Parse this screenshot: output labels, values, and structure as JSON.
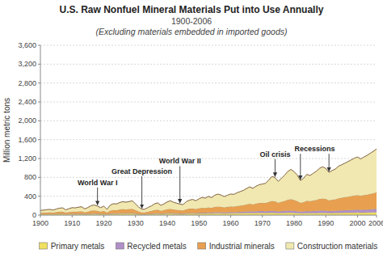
{
  "chart_data": {
    "type": "area",
    "stacked": true,
    "title": "U.S. Raw Nonfuel Mineral Materials Put into Use Annually",
    "subtitle": [
      "1900-2006",
      "(Excluding materials embedded in imported goods)"
    ],
    "y_label": "Million metric tons",
    "x": [
      1900,
      1901,
      1902,
      1903,
      1904,
      1905,
      1906,
      1907,
      1908,
      1909,
      1910,
      1911,
      1912,
      1913,
      1914,
      1915,
      1916,
      1917,
      1918,
      1919,
      1920,
      1921,
      1922,
      1923,
      1924,
      1925,
      1926,
      1927,
      1928,
      1929,
      1930,
      1931,
      1932,
      1933,
      1934,
      1935,
      1936,
      1937,
      1938,
      1939,
      1940,
      1941,
      1942,
      1943,
      1944,
      1945,
      1946,
      1947,
      1948,
      1949,
      1950,
      1951,
      1952,
      1953,
      1954,
      1955,
      1956,
      1957,
      1958,
      1959,
      1960,
      1961,
      1962,
      1963,
      1964,
      1965,
      1966,
      1967,
      1968,
      1969,
      1970,
      1971,
      1972,
      1973,
      1974,
      1975,
      1976,
      1977,
      1978,
      1979,
      1980,
      1981,
      1982,
      1983,
      1984,
      1985,
      1986,
      1987,
      1988,
      1989,
      1990,
      1991,
      1992,
      1993,
      1994,
      1995,
      1996,
      1997,
      1998,
      1999,
      2000,
      2001,
      2002,
      2003,
      2004,
      2005,
      2006
    ],
    "series": [
      {
        "name": "Primary metals",
        "color": "#f0e060",
        "values": [
          18,
          19,
          20,
          21,
          19,
          22,
          24,
          25,
          18,
          22,
          24,
          23,
          25,
          26,
          19,
          22,
          28,
          30,
          26,
          20,
          25,
          16,
          26,
          30,
          28,
          32,
          34,
          32,
          33,
          35,
          28,
          20,
          14,
          15,
          19,
          23,
          28,
          30,
          24,
          28,
          32,
          35,
          30,
          28,
          25,
          24,
          30,
          33,
          34,
          30,
          34,
          36,
          35,
          38,
          35,
          39,
          40,
          39,
          36,
          38,
          40,
          39,
          41,
          43,
          44,
          46,
          48,
          45,
          48,
          49,
          48,
          46,
          48,
          50,
          48,
          43,
          46,
          48,
          50,
          51,
          48,
          44,
          39,
          40,
          44,
          43,
          44,
          45,
          48,
          49,
          48,
          44,
          45,
          46,
          48,
          49,
          50,
          51,
          52,
          53,
          54,
          52,
          53,
          54,
          56,
          58,
          60
        ]
      },
      {
        "name": "Recycled metals",
        "color": "#b090c8",
        "values": [
          3,
          3,
          3,
          4,
          3,
          4,
          5,
          5,
          4,
          5,
          6,
          6,
          6,
          7,
          5,
          6,
          8,
          9,
          8,
          6,
          7,
          5,
          8,
          9,
          9,
          10,
          11,
          10,
          11,
          12,
          9,
          7,
          5,
          5,
          7,
          8,
          10,
          11,
          8,
          10,
          12,
          14,
          12,
          11,
          10,
          10,
          13,
          15,
          15,
          13,
          16,
          17,
          16,
          19,
          17,
          21,
          22,
          21,
          19,
          21,
          23,
          22,
          25,
          26,
          28,
          31,
          33,
          31,
          34,
          36,
          36,
          35,
          38,
          41,
          39,
          35,
          39,
          41,
          44,
          45,
          43,
          39,
          34,
          36,
          41,
          39,
          41,
          44,
          47,
          48,
          46,
          41,
          43,
          45,
          49,
          51,
          53,
          55,
          57,
          59,
          61,
          59,
          61,
          63,
          66,
          69,
          71
        ]
      },
      {
        "name": "Industrial minerals",
        "color": "#e8a050",
        "values": [
          28,
          30,
          33,
          34,
          30,
          37,
          42,
          44,
          33,
          39,
          44,
          43,
          47,
          50,
          38,
          46,
          57,
          61,
          56,
          47,
          56,
          36,
          60,
          70,
          68,
          77,
          82,
          79,
          83,
          88,
          70,
          51,
          36,
          38,
          48,
          57,
          69,
          75,
          60,
          69,
          80,
          86,
          78,
          73,
          67,
          65,
          80,
          88,
          92,
          85,
          95,
          103,
          100,
          108,
          102,
          115,
          120,
          115,
          107,
          115,
          120,
          119,
          128,
          133,
          140,
          150,
          158,
          152,
          163,
          172,
          175,
          177,
          191,
          209,
          203,
          185,
          199,
          213,
          230,
          241,
          230,
          213,
          188,
          199,
          219,
          213,
          223,
          233,
          247,
          256,
          247,
          228,
          238,
          245,
          259,
          267,
          277,
          285,
          294,
          302,
          309,
          300,
          309,
          317,
          328,
          338,
          352
        ]
      },
      {
        "name": "Construction materials",
        "color": "#f0e8b0",
        "values": [
          50,
          54,
          60,
          62,
          54,
          66,
          76,
          80,
          57,
          70,
          84,
          81,
          90,
          94,
          70,
          88,
          108,
          114,
          102,
          84,
          102,
          66,
          115,
          134,
          130,
          148,
          158,
          153,
          160,
          168,
          130,
          94,
          66,
          70,
          90,
          107,
          132,
          143,
          115,
          132,
          155,
          170,
          152,
          140,
          130,
          124,
          162,
          180,
          192,
          176,
          200,
          220,
          208,
          232,
          216,
          248,
          264,
          248,
          232,
          248,
          264,
          260,
          280,
          296,
          312,
          336,
          360,
          340,
          368,
          388,
          400,
          416,
          464,
          520,
          504,
          452,
          496,
          544,
          600,
          632,
          600,
          552,
          472,
          504,
          560,
          544,
          576,
          608,
          648,
          672,
          648,
          592,
          620,
          640,
          680,
          700,
          720,
          744,
          768,
          792,
          808,
          780,
          808,
          832,
          860,
          888,
          920
        ]
      }
    ],
    "xlim": [
      1900,
      2006
    ],
    "xticks": [
      1900,
      1910,
      1920,
      1930,
      1940,
      1950,
      1960,
      1970,
      1980,
      1990,
      2000,
      2006
    ],
    "ylim": [
      0,
      3600
    ],
    "yticks": [
      0,
      400,
      800,
      {
        "value": 1200,
        "label": "1,200"
      },
      {
        "value": 1600,
        "label": "1,600"
      },
      {
        "value": 2000,
        "label": "2,000"
      },
      {
        "value": 2400,
        "label": "2,400"
      },
      {
        "value": 2800,
        "label": "2,800"
      },
      {
        "value": 3200,
        "label": "3,200"
      },
      {
        "value": 3600,
        "label": "3,600"
      }
    ],
    "grid": true,
    "legend": "bottom",
    "annotations": [
      {
        "text": "World War I",
        "x": [
          1918
        ]
      },
      {
        "text": "Great Depression",
        "x": [
          1932
        ]
      },
      {
        "text": "World War II",
        "x": [
          1944
        ]
      },
      {
        "text": "Oil crisis",
        "x": [
          1974
        ]
      },
      {
        "text": "Recessions",
        "x": [
          1982,
          1991
        ]
      }
    ]
  }
}
